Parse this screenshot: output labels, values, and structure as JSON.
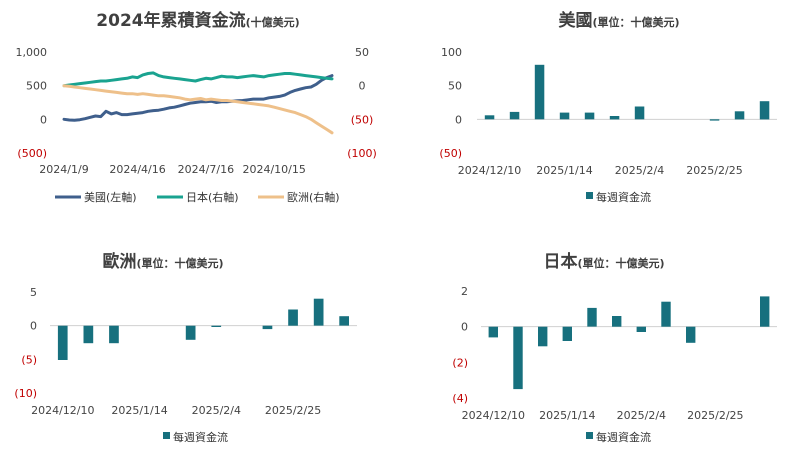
{
  "charts": [
    {
      "key": "cum",
      "type": "line",
      "title_main": "2024年累積資金流",
      "title_sub": "(十億美元)",
      "left_axis_ticks": [
        "1,000",
        "500",
        "0",
        "(500)"
      ],
      "right_axis_ticks": [
        "50",
        "0",
        "(50)",
        "(100)"
      ],
      "x_tick_labels": [
        "2024/1/9",
        "2024/4/16",
        "2024/7/16",
        "2024/10/15"
      ],
      "legend": [
        "美國(左軸)",
        "日本(右軸)",
        "歐洲(右軸)"
      ]
    },
    {
      "key": "us",
      "type": "bar",
      "title_main": "美國",
      "title_sub": "(單位：十億美元)",
      "y_ticks": [
        "100",
        "50",
        "0",
        "(50)"
      ],
      "x_tick_labels": [
        "2024/12/10",
        "2025/1/14",
        "2025/2/4",
        "2025/2/25"
      ],
      "legend": "每週資金流"
    },
    {
      "key": "eu",
      "type": "bar",
      "title_main": "歐洲",
      "title_sub": "(單位：十億美元)",
      "y_ticks": [
        "5",
        "0",
        "(5)",
        "(10)"
      ],
      "x_tick_labels": [
        "2024/12/10",
        "2025/1/14",
        "2025/2/4",
        "2025/2/25"
      ],
      "legend": "每週資金流"
    },
    {
      "key": "jp",
      "type": "bar",
      "title_main": "日本",
      "title_sub": "(單位：十億美元)",
      "y_ticks": [
        "2",
        "0",
        "(2)",
        "(4)"
      ],
      "x_tick_labels": [
        "2024/12/10",
        "2025/1/14",
        "2025/2/4",
        "2025/2/25"
      ],
      "legend": "每週資金流"
    }
  ],
  "colors": {
    "us_line": "#3f5f8c",
    "jp_line": "#1aa390",
    "eu_line": "#eec08a",
    "bar": "#17707e",
    "axis": "#d0d0d0",
    "negative_tick": "#c00000"
  },
  "chart_data": [
    {
      "type": "line",
      "left_ylim": [
        -500,
        1000
      ],
      "right_ylim": [
        -100,
        50
      ],
      "x": [
        "2024/1/9",
        "2024/1/16",
        "2024/1/23",
        "2024/1/30",
        "2024/2/6",
        "2024/2/13",
        "2024/2/20",
        "2024/2/27",
        "2024/3/5",
        "2024/3/12",
        "2024/3/19",
        "2024/3/26",
        "2024/4/2",
        "2024/4/9",
        "2024/4/16",
        "2024/4/23",
        "2024/4/30",
        "2024/5/7",
        "2024/5/14",
        "2024/5/21",
        "2024/5/28",
        "2024/6/4",
        "2024/6/11",
        "2024/6/18",
        "2024/6/25",
        "2024/7/2",
        "2024/7/9",
        "2024/7/16",
        "2024/7/23",
        "2024/7/30",
        "2024/8/6",
        "2024/8/13",
        "2024/8/20",
        "2024/8/27",
        "2024/9/3",
        "2024/9/10",
        "2024/9/17",
        "2024/9/24",
        "2024/10/1",
        "2024/10/8",
        "2024/10/15",
        "2024/10/22",
        "2024/10/29",
        "2024/11/5",
        "2024/11/12",
        "2024/11/19",
        "2024/11/26",
        "2024/12/3",
        "2024/12/10",
        "2024/12/17",
        "2024/12/24",
        "2024/12/31"
      ],
      "series": [
        {
          "name": "美國(左軸)",
          "axis": "left",
          "values": [
            0,
            -10,
            -15,
            -5,
            10,
            30,
            50,
            40,
            120,
            80,
            100,
            70,
            70,
            80,
            90,
            100,
            120,
            130,
            135,
            150,
            170,
            180,
            200,
            220,
            240,
            250,
            260,
            260,
            270,
            250,
            260,
            260,
            270,
            275,
            280,
            290,
            300,
            300,
            300,
            320,
            330,
            340,
            360,
            400,
            430,
            450,
            470,
            480,
            520,
            580,
            620,
            650
          ]
        },
        {
          "name": "日本(右軸)",
          "axis": "right",
          "values": [
            0,
            1,
            2,
            3,
            4,
            5,
            6,
            7,
            7,
            8,
            9,
            10,
            11,
            13,
            12,
            16,
            18,
            19,
            15,
            13,
            12,
            11,
            10,
            9,
            8,
            7,
            9,
            11,
            10,
            12,
            14,
            13,
            13,
            12,
            13,
            14,
            15,
            14,
            13,
            15,
            16,
            17,
            18,
            18,
            17,
            16,
            15,
            14,
            13,
            12,
            11,
            10
          ]
        },
        {
          "name": "歐洲(右軸)",
          "axis": "right",
          "values": [
            0,
            -1,
            -2,
            -3,
            -4,
            -5,
            -6,
            -7,
            -8,
            -9,
            -10,
            -11,
            -12,
            -12,
            -13,
            -12,
            -13,
            -14,
            -15,
            -15,
            -16,
            -17,
            -18,
            -20,
            -21,
            -20,
            -19,
            -21,
            -20,
            -21,
            -22,
            -22,
            -23,
            -24,
            -25,
            -26,
            -27,
            -28,
            -29,
            -30,
            -32,
            -34,
            -36,
            -38,
            -40,
            -43,
            -46,
            -50,
            -55,
            -60,
            -65,
            -70
          ]
        }
      ]
    },
    {
      "type": "bar",
      "ylim": [
        -50,
        100
      ],
      "x": [
        "2024/12/10",
        "2024/12/17",
        "2024/12/24",
        "2024/12/31",
        "2025/1/7",
        "2025/1/14",
        "2025/1/21",
        "2025/1/28",
        "2025/2/4",
        "2025/2/11",
        "2025/2/18",
        "2025/2/25"
      ],
      "series": [
        {
          "name": "每週資金流",
          "values": [
            6,
            11,
            81,
            10,
            10,
            5,
            19,
            0,
            0,
            -2,
            12,
            27
          ]
        }
      ]
    },
    {
      "type": "bar",
      "ylim": [
        -10,
        5
      ],
      "x": [
        "2024/12/10",
        "2024/12/17",
        "2024/12/24",
        "2024/12/31",
        "2025/1/7",
        "2025/1/14",
        "2025/1/21",
        "2025/1/28",
        "2025/2/4",
        "2025/2/11",
        "2025/2/18",
        "2025/2/25"
      ],
      "series": [
        {
          "name": "每週資金流",
          "values": [
            -5.1,
            -2.6,
            -2.6,
            0,
            0,
            -2.1,
            -0.2,
            0,
            -0.5,
            2.4,
            4,
            1.4
          ]
        }
      ]
    },
    {
      "type": "bar",
      "ylim": [
        -4,
        2
      ],
      "x": [
        "2024/12/10",
        "2024/12/17",
        "2024/12/24",
        "2024/12/31",
        "2025/1/7",
        "2025/1/14",
        "2025/1/21",
        "2025/1/28",
        "2025/2/4",
        "2025/2/11",
        "2025/2/18",
        "2025/2/25"
      ],
      "series": [
        {
          "name": "每週資金流",
          "values": [
            -0.6,
            -3.5,
            -1.1,
            -0.8,
            1.05,
            0.6,
            -0.3,
            1.4,
            -0.9,
            0,
            0,
            1.7
          ]
        }
      ]
    }
  ]
}
